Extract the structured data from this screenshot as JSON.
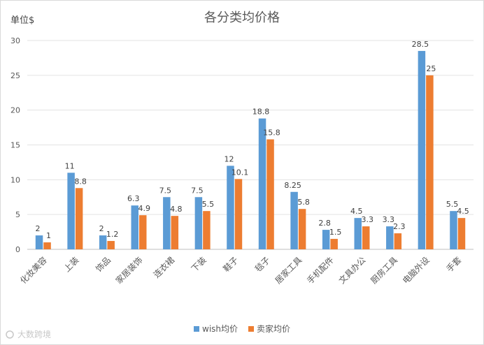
{
  "chart_data": {
    "type": "bar",
    "title": "各分类均价格",
    "ylabel": "单位$",
    "xlabel": "",
    "ylim": [
      0,
      30
    ],
    "yticks": [
      0,
      5,
      10,
      15,
      20,
      25,
      30
    ],
    "grid": true,
    "legend_position": "bottom",
    "categories": [
      "化妆美容",
      "上装",
      "饰品",
      "家居装饰",
      "连衣裙",
      "下装",
      "鞋子",
      "毯子",
      "居家工具",
      "手机配件",
      "文具办公",
      "厨房工具",
      "电脑外设",
      "手套"
    ],
    "series": [
      {
        "name": "wish均价",
        "color": "#5b9bd5",
        "values": [
          2,
          11,
          2,
          6.3,
          7.5,
          7.5,
          12,
          18.8,
          8.25,
          2.8,
          4.5,
          3.3,
          28.5,
          5.5
        ],
        "labels": [
          "2",
          "11",
          "2",
          "6.3",
          "7.5",
          "7.5",
          "12",
          "18.8",
          "8.25",
          "2.8",
          "4.5",
          "3.3",
          "28.5",
          "5.5"
        ]
      },
      {
        "name": "卖家均价",
        "color": "#ed7d31",
        "values": [
          1,
          8.8,
          1.2,
          4.9,
          4.8,
          5.5,
          10.1,
          15.8,
          5.8,
          1.5,
          3.3,
          2.3,
          25,
          4.5
        ],
        "labels": [
          "1",
          "8.8",
          "1.2",
          "4.9",
          "4.8",
          "5.5",
          "10.1",
          "15.8",
          "5.8",
          "1.5",
          "3.3",
          "2.3",
          "25",
          "4.5"
        ]
      }
    ]
  },
  "watermark": "大数跨境"
}
